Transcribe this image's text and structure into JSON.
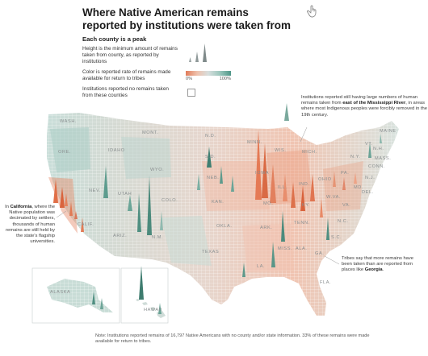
{
  "title": "Where Native American remains reported by institutions were taken from",
  "legend": {
    "heading": "Each county is a peak",
    "height_text": "Height is the minimum amount of remains taken from county, as reported by institutions",
    "color_text": "Color is reported rate of remains made available for return to tribes",
    "scale_min": "0%",
    "scale_max": "100%",
    "none_text": "Institutions reported no remains taken from these counties"
  },
  "annotations": {
    "east": {
      "before": "Institutions reported still having large numbers of human remains taken from ",
      "bold": "east of the Mississippi River",
      "after": ", in areas where most Indigenous peoples were forcibly removed in the 19th century."
    },
    "california": {
      "before": "In ",
      "bold": "California",
      "after": ", where the Native population was decimated by settlers, thousands of human remains are still held by the state's flagship universities."
    },
    "georgia": {
      "before": "Tribes say that more remains have been taken than are reported from places like ",
      "bold": "Georgia",
      "after": "."
    }
  },
  "state_labels": [
    "WASH.",
    "ORE.",
    "CALIF.",
    "NEV.",
    "IDAHO",
    "MONT.",
    "WYO.",
    "UTAH",
    "COLO.",
    "ARIZ.",
    "N.M.",
    "N.D.",
    "S.D.",
    "NEB.",
    "KAN.",
    "OKLA.",
    "TEXAS",
    "MINN.",
    "IOWA",
    "MO.",
    "ARK.",
    "LA.",
    "WIS.",
    "ILL.",
    "MICH.",
    "IND.",
    "OHIO",
    "KY.",
    "TENN.",
    "MISS.",
    "ALA.",
    "GA.",
    "FLA.",
    "S.C.",
    "N.C.",
    "VA.",
    "W.VA.",
    "PA.",
    "N.Y.",
    "MAINE",
    "VT.",
    "N.H.",
    "MASS.",
    "CONN.",
    "MD.",
    "DEL.",
    "N.J.",
    "ALASKA",
    "HAWAII"
  ],
  "note": "Note: Institutions reported remains of 16,797 Native Americans with no county and/or state information. 33% of these remains were made available for return to tribes.",
  "colors": {
    "low": "#e07c5a",
    "mid": "#d7dedd",
    "high": "#4f9688",
    "peak_dark": "#3f7f72"
  },
  "icons": [
    "hand-pointer-icon"
  ]
}
